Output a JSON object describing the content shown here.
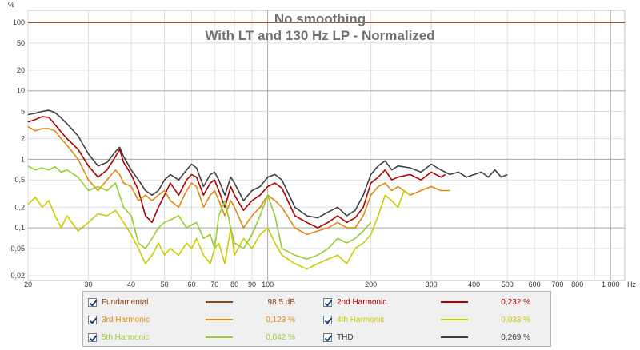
{
  "y_unit_label": "%",
  "x_unit_label": "Hz",
  "chart_data": {
    "type": "line",
    "title": "No smoothing",
    "subtitle": "With LT and 130 Hz LP - Normalized",
    "xscale": "log",
    "yscale": "log",
    "xlim": [
      20,
      1100
    ],
    "ylim": [
      0.017,
      150
    ],
    "grid": true,
    "x_ticks": [
      20,
      30,
      40,
      50,
      60,
      70,
      80,
      90,
      100,
      200,
      300,
      400,
      500,
      600,
      700,
      800,
      1000
    ],
    "x_tick_labels": [
      "20",
      "30",
      "40",
      "50",
      "60",
      "70",
      "80",
      "90",
      "100",
      "200",
      "300",
      "400",
      "500",
      "600",
      "700",
      "800",
      "1 000"
    ],
    "y_ticks": [
      0.02,
      0.05,
      0.1,
      0.2,
      0.5,
      1,
      2,
      5,
      10,
      20,
      50,
      100
    ],
    "y_tick_labels": [
      "0,02",
      "0,05",
      "0,1",
      "0,2",
      "0,5",
      "1",
      "2",
      "5",
      "10",
      "20",
      "50",
      "100"
    ],
    "legend_position": "bottom",
    "series": [
      {
        "name": "Fundamental",
        "color": "#8b4513",
        "legend_value": "98,5 dB",
        "x": [
          20,
          1100
        ],
        "y": [
          100,
          100
        ]
      },
      {
        "name": "2nd Harmonic",
        "color": "#b00000",
        "legend_value": "0,232 %",
        "x": [
          20,
          21,
          22,
          23,
          24,
          25,
          26,
          28,
          30,
          32,
          34,
          36,
          37,
          38,
          40,
          42,
          44,
          46,
          48,
          50,
          52,
          55,
          58,
          60,
          62,
          65,
          68,
          70,
          72,
          75,
          78,
          80,
          85,
          90,
          95,
          100,
          105,
          110,
          120,
          130,
          140,
          150,
          160,
          170,
          180,
          190,
          200,
          210,
          220,
          230,
          240,
          260,
          280,
          300,
          320,
          330
        ],
        "y": [
          3.5,
          3.8,
          4.2,
          4.1,
          3.2,
          2.5,
          2.0,
          1.4,
          0.8,
          0.55,
          0.7,
          1.1,
          1.4,
          0.9,
          0.6,
          0.35,
          0.15,
          0.12,
          0.2,
          0.3,
          0.45,
          0.3,
          0.5,
          0.6,
          0.55,
          0.3,
          0.45,
          0.5,
          0.35,
          0.2,
          0.4,
          0.3,
          0.18,
          0.25,
          0.3,
          0.4,
          0.45,
          0.38,
          0.15,
          0.12,
          0.1,
          0.12,
          0.15,
          0.12,
          0.14,
          0.2,
          0.45,
          0.55,
          0.7,
          0.5,
          0.55,
          0.6,
          0.5,
          0.65,
          0.55,
          0.6
        ]
      },
      {
        "name": "3rd Harmonic",
        "color": "#e08a10",
        "legend_value": "0,123 %",
        "x": [
          20,
          21,
          22,
          23,
          24,
          25,
          26,
          28,
          30,
          32,
          34,
          36,
          37,
          38,
          40,
          42,
          44,
          46,
          48,
          50,
          52,
          55,
          58,
          60,
          62,
          65,
          68,
          70,
          72,
          75,
          78,
          80,
          85,
          90,
          95,
          100,
          105,
          110,
          120,
          130,
          140,
          150,
          160,
          170,
          180,
          190,
          200,
          210,
          220,
          230,
          240,
          260,
          280,
          300,
          320,
          340
        ],
        "y": [
          3.0,
          2.6,
          2.8,
          2.8,
          2.6,
          2.0,
          1.6,
          1.0,
          0.5,
          0.35,
          0.5,
          0.7,
          0.6,
          0.45,
          0.4,
          0.25,
          0.3,
          0.25,
          0.3,
          0.35,
          0.25,
          0.2,
          0.35,
          0.45,
          0.4,
          0.2,
          0.3,
          0.35,
          0.25,
          0.15,
          0.25,
          0.2,
          0.1,
          0.15,
          0.2,
          0.3,
          0.25,
          0.2,
          0.1,
          0.08,
          0.09,
          0.1,
          0.12,
          0.1,
          0.1,
          0.15,
          0.3,
          0.4,
          0.45,
          0.35,
          0.4,
          0.3,
          0.35,
          0.4,
          0.35,
          0.35
        ]
      },
      {
        "name": "4th Harmonic",
        "color": "#cccc00",
        "legend_value": "0,033 %",
        "x": [
          20,
          21,
          22,
          23,
          24,
          25,
          26,
          28,
          30,
          32,
          34,
          36,
          38,
          40,
          42,
          44,
          46,
          48,
          50,
          52,
          55,
          58,
          60,
          62,
          65,
          68,
          70,
          72,
          75,
          78,
          80,
          85,
          90,
          95,
          100,
          105,
          110,
          120,
          130,
          140,
          150,
          160,
          170,
          180,
          190,
          200,
          210,
          220,
          230,
          240,
          250,
          260
        ],
        "y": [
          0.22,
          0.28,
          0.2,
          0.25,
          0.15,
          0.1,
          0.15,
          0.09,
          0.12,
          0.16,
          0.15,
          0.18,
          0.12,
          0.08,
          0.05,
          0.03,
          0.04,
          0.06,
          0.04,
          0.05,
          0.04,
          0.06,
          0.05,
          0.07,
          0.04,
          0.03,
          0.05,
          0.06,
          0.03,
          0.1,
          0.04,
          0.07,
          0.05,
          0.08,
          0.1,
          0.06,
          0.04,
          0.03,
          0.025,
          0.03,
          0.035,
          0.04,
          0.03,
          0.05,
          0.06,
          0.08,
          0.15,
          0.3,
          0.25,
          0.2,
          0.35,
          0.3
        ]
      },
      {
        "name": "5th Harmonic",
        "color": "#99cc33",
        "legend_value": "0,042 %",
        "x": [
          20,
          21,
          22,
          23,
          24,
          25,
          26,
          28,
          30,
          32,
          34,
          36,
          38,
          40,
          42,
          44,
          46,
          48,
          50,
          52,
          55,
          58,
          60,
          62,
          65,
          68,
          70,
          72,
          75,
          78,
          80,
          85,
          90,
          95,
          100,
          105,
          110,
          120,
          130,
          140,
          150,
          160,
          170,
          180,
          190,
          200
        ],
        "y": [
          0.8,
          0.7,
          0.75,
          0.7,
          0.78,
          0.65,
          0.7,
          0.55,
          0.35,
          0.4,
          0.35,
          0.45,
          0.2,
          0.15,
          0.06,
          0.05,
          0.07,
          0.1,
          0.12,
          0.13,
          0.15,
          0.1,
          0.11,
          0.12,
          0.07,
          0.08,
          0.05,
          0.15,
          0.25,
          0.1,
          0.06,
          0.05,
          0.08,
          0.15,
          0.3,
          0.15,
          0.05,
          0.04,
          0.035,
          0.04,
          0.05,
          0.07,
          0.06,
          0.07,
          0.09,
          0.12
        ]
      },
      {
        "name": "THD",
        "color": "#404040",
        "legend_value": "0,269 %",
        "x": [
          20,
          21,
          22,
          23,
          24,
          25,
          26,
          28,
          30,
          32,
          34,
          36,
          37,
          38,
          40,
          42,
          44,
          46,
          48,
          50,
          52,
          55,
          58,
          60,
          62,
          65,
          68,
          70,
          72,
          75,
          78,
          80,
          85,
          90,
          95,
          100,
          105,
          110,
          120,
          130,
          140,
          150,
          160,
          170,
          180,
          190,
          200,
          210,
          220,
          230,
          240,
          260,
          280,
          300,
          320,
          340,
          360,
          380,
          400,
          420,
          440,
          460,
          480,
          500
        ],
        "y": [
          4.5,
          4.7,
          5.0,
          5.2,
          4.8,
          4.0,
          3.3,
          2.2,
          1.2,
          0.8,
          0.9,
          1.3,
          1.5,
          1.1,
          0.7,
          0.5,
          0.35,
          0.3,
          0.35,
          0.5,
          0.6,
          0.5,
          0.7,
          0.85,
          0.75,
          0.4,
          0.6,
          0.65,
          0.5,
          0.3,
          0.55,
          0.45,
          0.25,
          0.35,
          0.4,
          0.55,
          0.6,
          0.5,
          0.2,
          0.15,
          0.14,
          0.17,
          0.2,
          0.15,
          0.18,
          0.3,
          0.6,
          0.8,
          0.95,
          0.7,
          0.8,
          0.75,
          0.65,
          0.85,
          0.7,
          0.6,
          0.65,
          0.55,
          0.6,
          0.65,
          0.55,
          0.7,
          0.55,
          0.6
        ]
      }
    ]
  }
}
